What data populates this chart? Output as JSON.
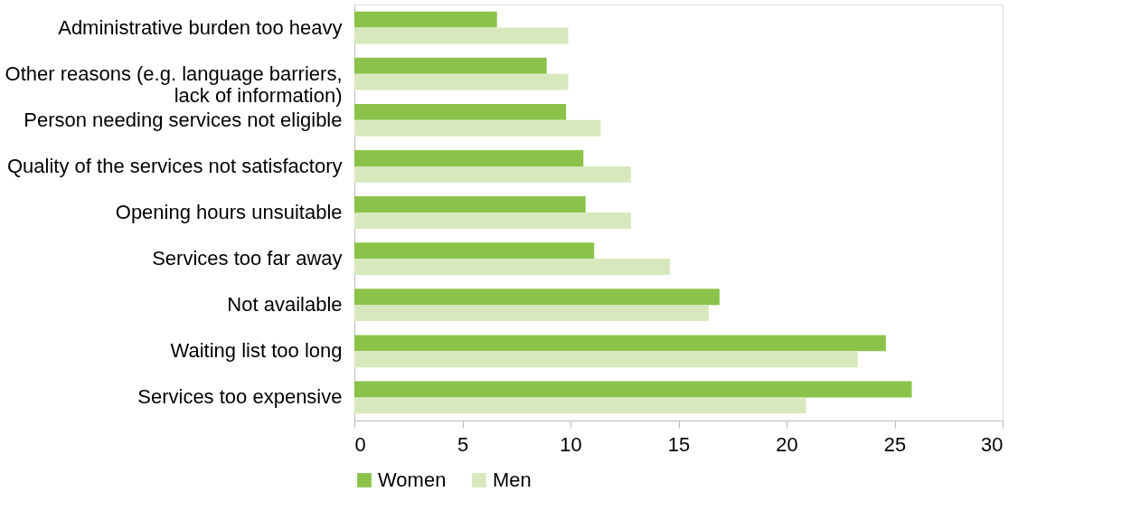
{
  "chart_data": {
    "type": "bar",
    "orientation": "horizontal",
    "categories": [
      "Administrative burden too heavy",
      "Other reasons (e.g. language barriers,\nlack of information)",
      "Person needing services not eligible",
      "Quality of the services not satisfactory",
      "Opening hours unsuitable",
      "Services too far away",
      "Not available",
      "Waiting list too long",
      "Services too expensive"
    ],
    "series": [
      {
        "name": "Women",
        "color": "#8bc34a",
        "values": [
          6.6,
          8.9,
          9.8,
          10.6,
          10.7,
          11.1,
          16.9,
          24.6,
          25.8
        ]
      },
      {
        "name": "Men",
        "color": "#d7e9bc",
        "values": [
          9.9,
          9.9,
          11.4,
          12.8,
          12.8,
          14.6,
          16.4,
          23.3,
          20.9
        ]
      }
    ],
    "xlim": [
      0,
      30
    ],
    "xticks": [
      0,
      5,
      10,
      15,
      20,
      25,
      30
    ],
    "grid": false,
    "legend": "bottom"
  }
}
